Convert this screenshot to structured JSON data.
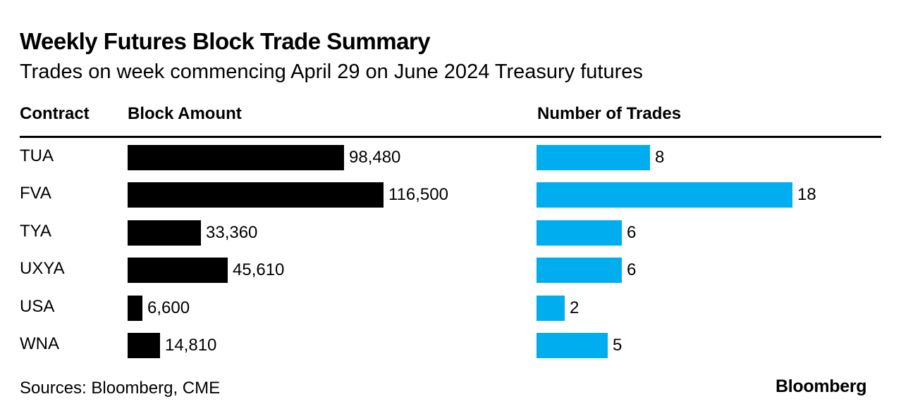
{
  "title": "Weekly Futures Block Trade Summary",
  "subtitle": "Trades on week commencing April 29 on June 2024 Treasury futures",
  "headers": {
    "contract": "Contract",
    "block_amount": "Block Amount",
    "num_trades": "Number of Trades"
  },
  "colors": {
    "block_bar": "#000000",
    "trades_bar": "#00adef"
  },
  "chart_data": {
    "type": "bar",
    "title": "Weekly Futures Block Trade Summary",
    "subtitle": "Trades on week commencing April 29 on June 2024 Treasury futures",
    "categories": [
      "TUA",
      "FVA",
      "TYA",
      "UXYA",
      "USA",
      "WNA"
    ],
    "series": [
      {
        "name": "Block Amount",
        "values": [
          98480,
          116500,
          33360,
          45610,
          6600,
          14810
        ],
        "labels": [
          "98,480",
          "116,500",
          "33,360",
          "45,610",
          "6,600",
          "14,810"
        ]
      },
      {
        "name": "Number of Trades",
        "values": [
          8,
          18,
          6,
          6,
          2,
          5
        ],
        "labels": [
          "8",
          "18",
          "6",
          "6",
          "2",
          "5"
        ]
      }
    ],
    "orientation": "horizontal",
    "grid": false
  },
  "source": "Sources: Bloomberg, CME",
  "brand": "Bloomberg"
}
